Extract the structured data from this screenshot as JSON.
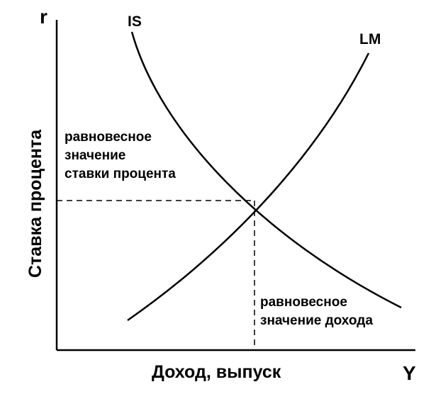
{
  "axes": {
    "y_symbol": "r",
    "x_symbol": "Y",
    "y_title": "Ставка процента",
    "x_title": "Доход, выпуск"
  },
  "curves": {
    "is_label": "IS",
    "lm_label": "LM"
  },
  "annotations": {
    "rate_line1": "равновесное",
    "rate_line2": "значение",
    "rate_line3": "ставки процента",
    "income_line1": "равновесное",
    "income_line2": "значение дохода"
  }
}
